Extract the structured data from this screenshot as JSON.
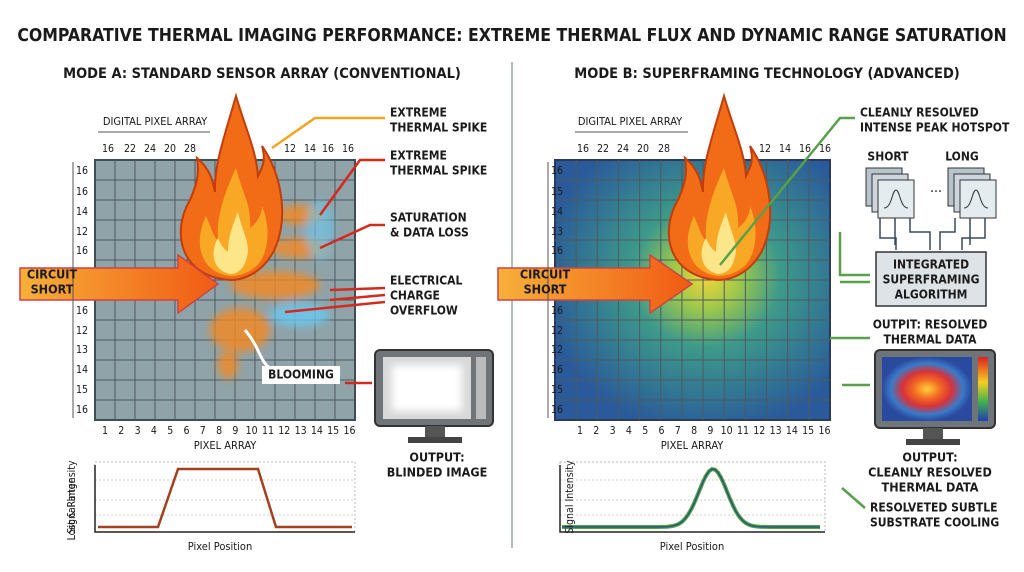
{
  "header": {
    "title": "COMPARATIVE THERMAL IMAGING PERFORMANCE: EXTREME THERMAL FLUX AND DYNAMIC RANGE SATURATION"
  },
  "panel_a": {
    "title": "MODE A: STANDARD SENSOR ARRAY (CONVENTIONAL)",
    "array_label": "DIGITAL PIXEL ARRAY",
    "top_axis": [
      16,
      22,
      24,
      20,
      28,
      12,
      14,
      16,
      16
    ],
    "left_axis": [
      16,
      16,
      14,
      12,
      16,
      16,
      12,
      13,
      14,
      15,
      16
    ],
    "bottom_axis": [
      1,
      2,
      3,
      4,
      5,
      6,
      7,
      8,
      9,
      10,
      11,
      12,
      13,
      14,
      15,
      16
    ],
    "bottom_label": "PIXEL ARRAY",
    "input": [
      "CIRCUIT",
      "SHORT"
    ],
    "spike_1": [
      "EXTREME",
      "THERMAL SPIKE"
    ],
    "spike_2": [
      "EXTREME",
      "THERMAL SPIKE"
    ],
    "saturation": [
      "SATURATION",
      "& DATA LOSS"
    ],
    "overflow": [
      "ELECTRICAL",
      "CHARGE",
      "OVERFLOW"
    ],
    "blooming": "BLOOMING",
    "output": [
      "OUTPUT:",
      "BLINDED IMAGE"
    ],
    "plot_y_label": [
      "Signal Intensity",
      "Lost & Range"
    ],
    "plot_x_label": "Pixel Position"
  },
  "panel_b": {
    "title": "MODE B: SUPERFRAMING TECHNOLOGY (ADVANCED)",
    "array_label": "DIGITAL PIXEL ARRAY",
    "top_axis": [
      16,
      22,
      24,
      20,
      28,
      12,
      14,
      16,
      16
    ],
    "left_axis": [
      16,
      15,
      14,
      13,
      16,
      16,
      12,
      12,
      16,
      15,
      16
    ],
    "bottom_axis": [
      1,
      2,
      3,
      4,
      5,
      6,
      7,
      8,
      9,
      10,
      11,
      12,
      13,
      14,
      15,
      16
    ],
    "bottom_label": "PIXEL ARRAY",
    "input": [
      "CIRCUIT",
      "SHORT"
    ],
    "hotspot": [
      "CLEANLY RESOLVED",
      "INTENSE PEAK HOTSPOT"
    ],
    "short": "SHORT",
    "long": "LONG",
    "algorithm": [
      "INTEGRATED",
      "SUPERFRAMING",
      "ALGORITHM"
    ],
    "resolved": [
      "OUTPIT: RESOLVED",
      "THERMAL DATA"
    ],
    "output": [
      "OUTPUT:",
      "CLEANLY RESOLVED",
      "THERMAL DATA"
    ],
    "cooling": [
      "RESOLVETED SUBTLE",
      "SUBSTRATE COOLING"
    ],
    "plot_y_label": "Signal Intensity",
    "plot_x_label": "Pixel Position"
  }
}
